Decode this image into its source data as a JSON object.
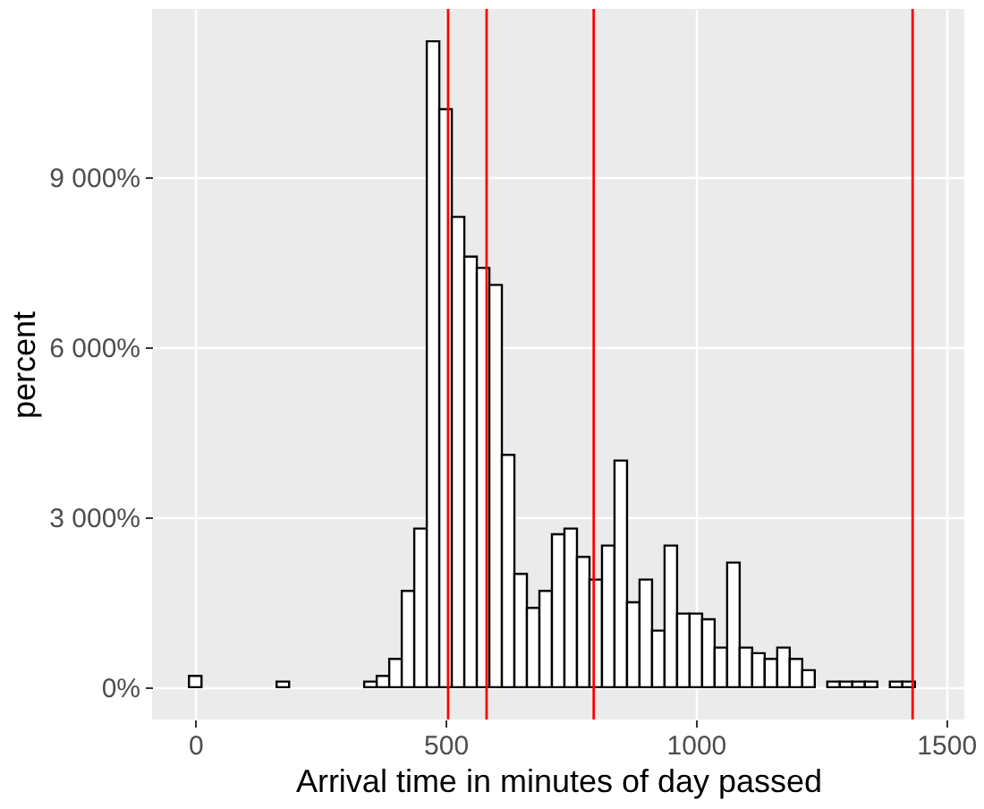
{
  "chart_data": {
    "type": "histogram",
    "xlabel": "Arrival time in minutes of day passed",
    "ylabel": "percent",
    "bins": [
      -12.5,
      12.5,
      37.5,
      62.5,
      87.5,
      112.5,
      137.5,
      162.5,
      187.5,
      212.5,
      237.5,
      262.5,
      287.5,
      312.5,
      337.5,
      362.5,
      387.5,
      412.5,
      437.5,
      462.5,
      487.5,
      512.5,
      537.5,
      562.5,
      587.5,
      612.5,
      637.5,
      662.5,
      687.5,
      712.5,
      737.5,
      762.5,
      787.5,
      812.5,
      837.5,
      862.5,
      887.5,
      912.5,
      937.5,
      962.5,
      987.5,
      1012.5,
      1037.5,
      1062.5,
      1087.5,
      1112.5,
      1137.5,
      1162.5,
      1187.5,
      1212.5,
      1237.5,
      1262.5,
      1287.5,
      1312.5,
      1337.5,
      1362.5,
      1387.5,
      1412.5,
      1437.5,
      1462.5
    ],
    "values": [
      200,
      0,
      0,
      0,
      0,
      0,
      0,
      100,
      0,
      0,
      0,
      0,
      0,
      0,
      100,
      200,
      500,
      1700,
      2800,
      11400,
      10200,
      8300,
      7600,
      7400,
      7100,
      4100,
      2000,
      1400,
      1700,
      2700,
      2800,
      2300,
      1900,
      2500,
      4000,
      1500,
      1900,
      1000,
      2500,
      1300,
      1300,
      1200,
      700,
      2200,
      700,
      600,
      500,
      700,
      500,
      300,
      0,
      100,
      100,
      100,
      100,
      0,
      100,
      100,
      0
    ],
    "color": "#ffffff",
    "xlim": [
      -86.25,
      1536.25
    ],
    "xticks": [
      0,
      500,
      1000,
      1500
    ],
    "ylim": [
      -570,
      11970
    ],
    "yticks": [
      {
        "value": 0,
        "label": "0%"
      },
      {
        "value": 3000,
        "label": "3 000%"
      },
      {
        "value": 6000,
        "label": "6 000%"
      },
      {
        "value": 9000,
        "label": "9 000%"
      }
    ],
    "grid": true,
    "ref_lines": [
      {
        "axis": "x",
        "value": 505,
        "color": "#ff0000"
      },
      {
        "axis": "x",
        "value": 582,
        "color": "#ff0000"
      },
      {
        "axis": "x",
        "value": 796,
        "color": "#ff0000"
      },
      {
        "axis": "x",
        "value": 1433,
        "color": "#ff0000"
      }
    ]
  }
}
